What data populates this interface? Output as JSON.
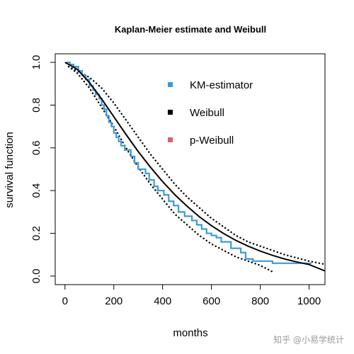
{
  "chart_data": {
    "type": "line",
    "title": "Kaplan-Meier estimate and Weibull",
    "xlabel": "months",
    "ylabel": "survival function",
    "xlim": [
      -40,
      1065
    ],
    "ylim": [
      -0.04,
      1.04
    ],
    "x_ticks": [
      0,
      200,
      400,
      600,
      800,
      1000
    ],
    "y_ticks": [
      0.0,
      0.2,
      0.4,
      0.6,
      0.8,
      1.0
    ],
    "x_tick_labels": [
      "0",
      "200",
      "400",
      "600",
      "800",
      "1000"
    ],
    "y_tick_labels": [
      "0.0",
      "0.2",
      "0.4",
      "0.6",
      "0.8",
      "1.0"
    ],
    "grid": false,
    "legend_position": "top-right",
    "legend": [
      {
        "label": "KM-estimator",
        "color": "#3b9ad9"
      },
      {
        "label": "Weibull",
        "color": "#000000"
      },
      {
        "label": "p-Weibull",
        "color": "#d0646e"
      }
    ],
    "series": [
      {
        "name": "KM-estimator",
        "style": "step",
        "color": "#3b9ad9",
        "x": [
          5,
          20,
          35,
          55,
          70,
          85,
          100,
          115,
          125,
          140,
          150,
          160,
          170,
          180,
          190,
          200,
          210,
          220,
          230,
          245,
          270,
          285,
          300,
          330,
          345,
          365,
          380,
          405,
          425,
          445,
          465,
          490,
          520,
          540,
          560,
          580,
          600,
          620,
          640,
          680,
          720,
          740,
          770,
          850,
          1010
        ],
        "y": [
          1.0,
          0.99,
          0.98,
          0.96,
          0.94,
          0.92,
          0.89,
          0.87,
          0.85,
          0.83,
          0.8,
          0.78,
          0.75,
          0.72,
          0.7,
          0.67,
          0.65,
          0.63,
          0.61,
          0.59,
          0.56,
          0.53,
          0.5,
          0.48,
          0.45,
          0.42,
          0.4,
          0.38,
          0.35,
          0.33,
          0.3,
          0.28,
          0.26,
          0.24,
          0.22,
          0.2,
          0.19,
          0.18,
          0.16,
          0.13,
          0.11,
          0.08,
          0.07,
          0.06,
          0.06
        ]
      },
      {
        "name": "Weibull",
        "style": "solid",
        "color": "#000000",
        "x": [
          0,
          50,
          100,
          150,
          200,
          250,
          300,
          350,
          400,
          450,
          500,
          550,
          600,
          650,
          700,
          750,
          800,
          850,
          900,
          950,
          1000,
          1065
        ],
        "y": [
          1.0,
          0.968,
          0.906,
          0.829,
          0.746,
          0.663,
          0.583,
          0.51,
          0.442,
          0.381,
          0.327,
          0.278,
          0.236,
          0.199,
          0.167,
          0.14,
          0.117,
          0.097,
          0.08,
          0.066,
          0.054,
          0.024
        ]
      },
      {
        "name": "p-Weibull",
        "style": "solid",
        "color": "#d0646e",
        "x": [
          0,
          50,
          100,
          150,
          200,
          250,
          300,
          350,
          400,
          450,
          500,
          550,
          600,
          650,
          700,
          750,
          800,
          850,
          900,
          950,
          1000,
          1065
        ],
        "y": [
          1.0,
          0.966,
          0.903,
          0.826,
          0.743,
          0.66,
          0.58,
          0.507,
          0.44,
          0.379,
          0.325,
          0.277,
          0.235,
          0.198,
          0.166,
          0.139,
          0.116,
          0.096,
          0.079,
          0.065,
          0.053,
          0.024
        ]
      },
      {
        "name": "",
        "style": "dotted",
        "color": "#000000",
        "x": [
          15,
          50,
          100,
          150,
          200,
          250,
          300,
          350,
          400,
          450,
          500,
          550,
          600,
          650,
          700,
          750,
          800,
          850,
          900,
          950,
          1000,
          1065
        ],
        "y": [
          0.98,
          0.96,
          0.93,
          0.88,
          0.81,
          0.73,
          0.65,
          0.57,
          0.5,
          0.43,
          0.37,
          0.32,
          0.27,
          0.23,
          0.19,
          0.16,
          0.14,
          0.12,
          0.1,
          0.085,
          0.07,
          0.055
        ]
      },
      {
        "name": "",
        "style": "dotted",
        "color": "#000000",
        "x": [
          15,
          50,
          100,
          150,
          200,
          250,
          300,
          350,
          400,
          450,
          500,
          550,
          600,
          650,
          700,
          750,
          800,
          850
        ],
        "y": [
          0.98,
          0.95,
          0.88,
          0.79,
          0.7,
          0.6,
          0.51,
          0.43,
          0.36,
          0.29,
          0.24,
          0.19,
          0.15,
          0.12,
          0.09,
          0.07,
          0.05,
          0.02
        ]
      }
    ]
  },
  "watermark": "知乎 @小易学统计"
}
